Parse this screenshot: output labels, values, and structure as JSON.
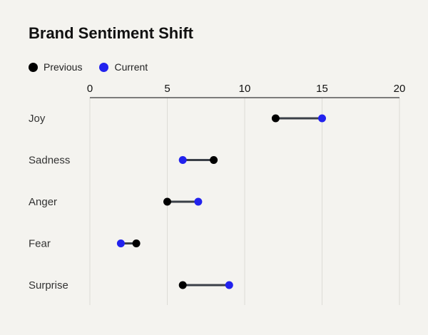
{
  "chart_data": {
    "type": "dumbbell",
    "title": "Brand Sentiment Shift",
    "xlabel": "",
    "ylabel": "",
    "xlim": [
      0,
      20
    ],
    "xticks": [
      0,
      5,
      10,
      15,
      20
    ],
    "grid": true,
    "legend_position": "top-left",
    "categories": [
      "Joy",
      "Sadness",
      "Anger",
      "Fear",
      "Surprise"
    ],
    "series": [
      {
        "name": "Previous",
        "color": "#000000",
        "values": [
          12,
          8,
          5,
          3,
          6
        ]
      },
      {
        "name": "Current",
        "color": "#2222ee",
        "values": [
          15,
          6,
          7,
          2,
          9
        ]
      }
    ],
    "connector_color": "#3a3f47"
  }
}
